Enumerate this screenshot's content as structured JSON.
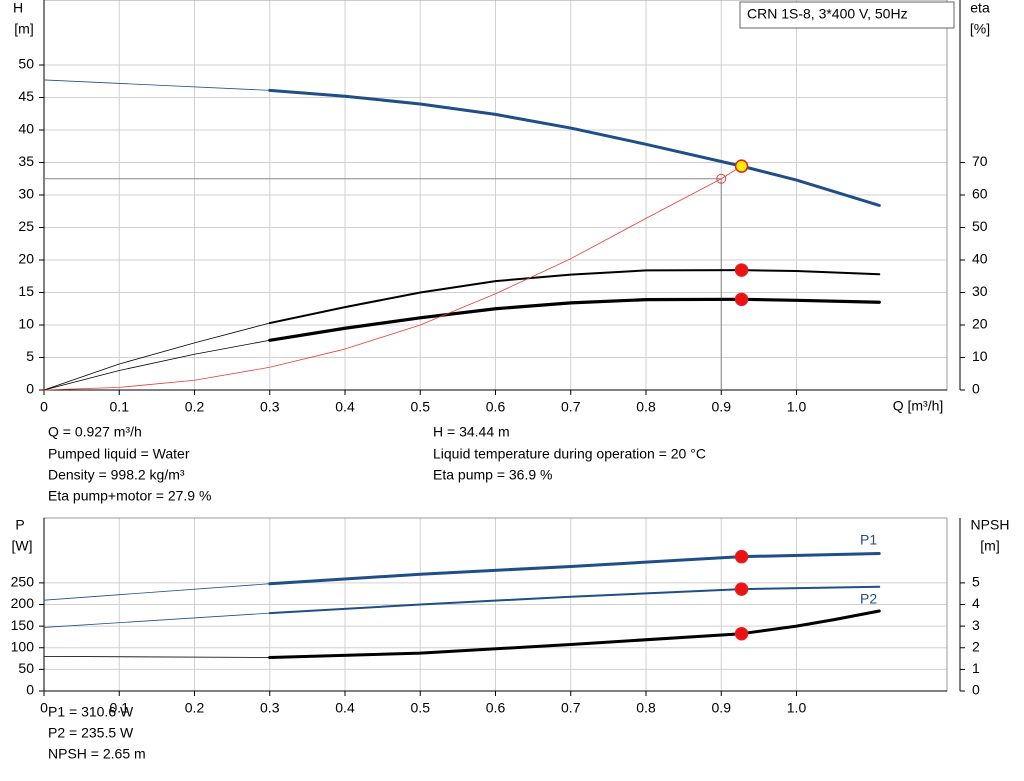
{
  "chart_data": [
    {
      "type": "line",
      "info_box": "CRN 1S-8, 3*400 V, 50Hz",
      "y_label": [
        "H",
        "[m]"
      ],
      "y2_label": [
        "eta",
        "[%]"
      ],
      "x_label": "Q [m³/h]",
      "xlim": [
        0,
        1.2
      ],
      "xticks": [
        0,
        0.1,
        0.2,
        0.3,
        0.4,
        0.5,
        0.6,
        0.7,
        0.8,
        0.9,
        {
          "value": 1.0,
          "label": "1.0"
        }
      ],
      "ylim": [
        0,
        60
      ],
      "yticks": [
        0,
        5,
        10,
        15,
        20,
        25,
        30,
        35,
        40,
        45,
        50
      ],
      "y2lim": [
        0,
        120
      ],
      "y2ticks": [
        0,
        10,
        20,
        30,
        40,
        50,
        60,
        70
      ],
      "grid": true,
      "series": [
        {
          "color": "#1f4e89",
          "width": 3,
          "bold_from": 0.3,
          "x": [
            0,
            0.3,
            0.4,
            0.5,
            0.6,
            0.7,
            0.8,
            0.927,
            1.0,
            1.11
          ],
          "values": [
            47.7,
            46.1,
            45.2,
            44,
            42.4,
            40.3,
            37.8,
            34.44,
            32.3,
            28.4
          ]
        },
        {
          "color": "#000000",
          "width": 2,
          "bold_from": 0.3,
          "axis": "y2",
          "x": [
            0,
            0.1,
            0.2,
            0.3,
            0.4,
            0.5,
            0.6,
            0.7,
            0.8,
            0.927,
            1.0,
            1.11
          ],
          "values": [
            0,
            8,
            14.5,
            20.6,
            25.5,
            30,
            33.5,
            35.5,
            36.8,
            36.9,
            36.6,
            35.6
          ]
        },
        {
          "color": "#000000",
          "width": 3.2,
          "bold_from": 0.3,
          "axis": "y2",
          "x": [
            0,
            0.1,
            0.2,
            0.3,
            0.4,
            0.5,
            0.6,
            0.7,
            0.8,
            0.927,
            1.0,
            1.11
          ],
          "values": [
            0,
            6,
            11,
            15.3,
            19,
            22.2,
            25,
            26.8,
            27.8,
            27.9,
            27.6,
            27
          ]
        },
        {
          "color": "#e8403c",
          "width": 0.8,
          "x": [
            0,
            0.1,
            0.2,
            0.3,
            0.4,
            0.5,
            0.6,
            0.7,
            0.8,
            0.9,
            0.927
          ],
          "values": [
            0,
            0.4,
            1.5,
            3.5,
            6.3,
            10,
            14.8,
            20.2,
            26.4,
            32.5,
            34.44
          ]
        }
      ],
      "reference_point": {
        "x": 0.9,
        "y": 32.5
      },
      "points": [
        {
          "x": 0.927,
          "y": 34.44,
          "color": "#ffec00"
        },
        {
          "x": 0.927,
          "y": 36.9,
          "axis": "y2",
          "color": "#ee1111"
        },
        {
          "x": 0.927,
          "y": 27.9,
          "axis": "y2",
          "color": "#ee1111"
        }
      ],
      "info": [
        "Q = 0.927 m³/h",
        "Pumped liquid = Water",
        "Density = 998.2 kg/m³",
        "Eta pump+motor = 27.9 %",
        "H = 34.44 m",
        "Liquid temperature during operation = 20 °C",
        "Eta pump = 36.9 %"
      ]
    },
    {
      "type": "line",
      "y_label": [
        "P",
        "[W]"
      ],
      "y2_label": [
        "NPSH",
        "[m]"
      ],
      "xlim": [
        0,
        1.2
      ],
      "xticks": [
        0,
        0.1,
        0.2,
        0.3,
        0.4,
        0.5,
        0.6,
        0.7,
        0.8,
        0.9,
        {
          "value": 1.0,
          "label": "1.0"
        }
      ],
      "ylim": [
        0,
        400
      ],
      "yticks": [
        0,
        50,
        100,
        150,
        200,
        250
      ],
      "y2lim": [
        0,
        8
      ],
      "y2ticks": [
        0,
        1,
        2,
        3,
        4,
        5
      ],
      "grid": true,
      "series": [
        {
          "name": "P1",
          "color": "#1f4e89",
          "width": 3,
          "bold_from": 0.3,
          "x": [
            0,
            0.3,
            0.5,
            0.7,
            0.927,
            1.11
          ],
          "values": [
            210,
            248,
            270,
            288,
            310.6,
            318
          ]
        },
        {
          "name": "P2",
          "color": "#1f4e89",
          "width": 2,
          "bold_from": 0.3,
          "x": [
            0,
            0.3,
            0.5,
            0.7,
            0.927,
            1.11
          ],
          "values": [
            147,
            180,
            200,
            218,
            235.5,
            241
          ]
        },
        {
          "color": "#000000",
          "width": 3,
          "bold_from": 0.3,
          "axis": "y2",
          "x": [
            0,
            0.3,
            0.5,
            0.7,
            0.927,
            1.0,
            1.05,
            1.11
          ],
          "values": [
            1.6,
            1.55,
            1.75,
            2.15,
            2.65,
            3.0,
            3.3,
            3.7
          ]
        }
      ],
      "points": [
        {
          "x": 0.927,
          "y": 310.6,
          "color": "#ee1111"
        },
        {
          "x": 0.927,
          "y": 235.5,
          "color": "#ee1111"
        },
        {
          "x": 0.927,
          "y": 2.65,
          "axis": "y2",
          "color": "#ee1111"
        }
      ],
      "info": [
        "P1 = 310.6 W",
        "P2 = 235.5 W",
        "NPSH = 2.65 m"
      ]
    }
  ]
}
